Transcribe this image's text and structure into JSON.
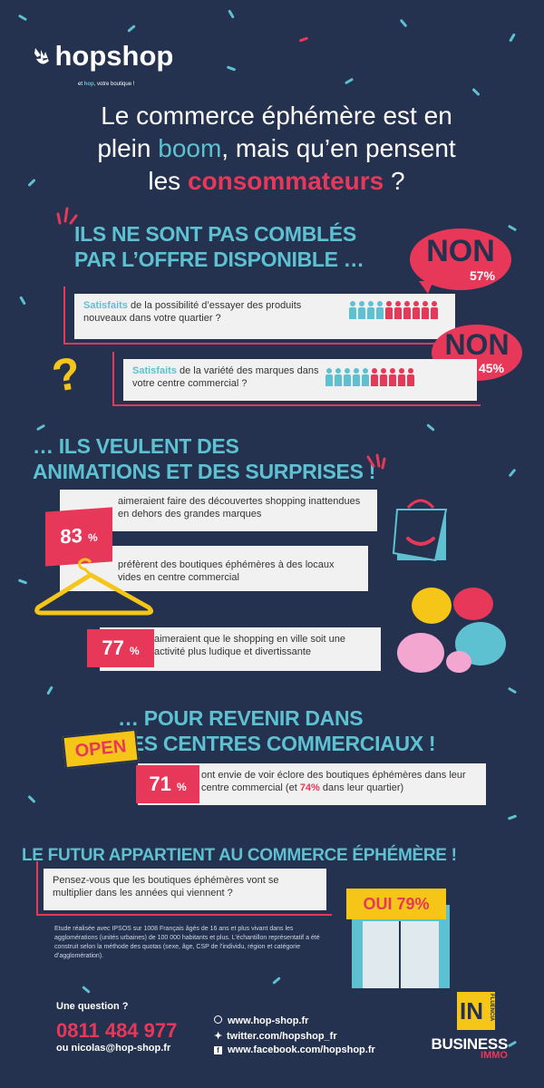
{
  "brand": {
    "name_part1": "hop",
    "name_part2": "shop",
    "tagline_pre": "et ",
    "tagline_hop": "hop",
    "tagline_post": ", votre boutique !"
  },
  "headline": {
    "line1": "Le commerce éphémère est en",
    "line2_pre": "plein ",
    "line2_boom": "boom",
    "line2_post": ", mais qu’en pensent",
    "line3_pre": "les ",
    "line3_red": "consommateurs",
    "line3_post": " ?"
  },
  "section1": {
    "title_line1": "ILS NE SONT PAS COMBLÉS",
    "title_line2": "PAR L’OFFRE DISPONIBLE …",
    "item1": {
      "bold": "Satisfaits",
      "text": " de la possibilité d’essayer des produits nouveaux dans votre quartier ?",
      "bubble_label": "NON",
      "bubble_pct": "57%"
    },
    "item2": {
      "bold": "Satisfaits",
      "text": " de la variété des marques dans votre centre commercial ?",
      "bubble_label": "NON",
      "bubble_pct": "45%"
    },
    "question_mark": "?"
  },
  "section2": {
    "title_line1": "… ILS VEULENT DES",
    "title_line2": "ANIMATIONS ET DES SURPRISES !",
    "pct1": "83",
    "pct_sign": "%",
    "text1": "aimeraient faire des découvertes shopping inattendues en dehors des grandes marques",
    "text2": "préfèrent des boutiques éphémères à des locaux vides en centre commercial",
    "pct2": "77",
    "text3": "aimeraient que le shopping en ville soit une activité plus ludique et divertissante"
  },
  "section3": {
    "title_line1": "… POUR REVENIR DANS",
    "title_line2": "LES CENTRES COMMERCIAUX !",
    "open_sign": "OPEN",
    "pct": "71",
    "pct_sign": "%",
    "text_pre": "ont envie de voir éclore des boutiques éphémères dans leur centre commercial (et ",
    "text_red": "74%",
    "text_post": " dans leur quartier)"
  },
  "section4": {
    "title": "LE FUTUR APPARTIENT AU COMMERCE ÉPHÉMÈRE !",
    "question": "Pensez-vous que les boutiques éphémères vont se multiplier dans les années qui viennent ?",
    "answer": "OUI 79%",
    "study": "Etude réalisée avec IPSOS sur 1008 Français âgés de 16 ans et plus vivant dans les agglomérations (unités urbaines) de 100 000 habitants et plus. L’échantillon représentatif a été construit selon la méthode des quotas (sexe, âge, CSP de l’individu, région et catégorie d’agglomération)."
  },
  "footer": {
    "question": "Une question ?",
    "phone": "0811 484 977",
    "email": "ou nicolas@hop-shop.fr",
    "web": "www.hop-shop.fr",
    "twitter": "twitter.com/hopshop_fr",
    "facebook": "www.facebook.com/hopshop.fr",
    "partner_logo": "IN",
    "partner_sub": "FLUENCIA",
    "media1": "BUSINESS",
    "media2": "IMMO"
  },
  "colors": {
    "background": "#24324f",
    "accent_blue": "#5ec1d2",
    "accent_red": "#e8385a"
  }
}
